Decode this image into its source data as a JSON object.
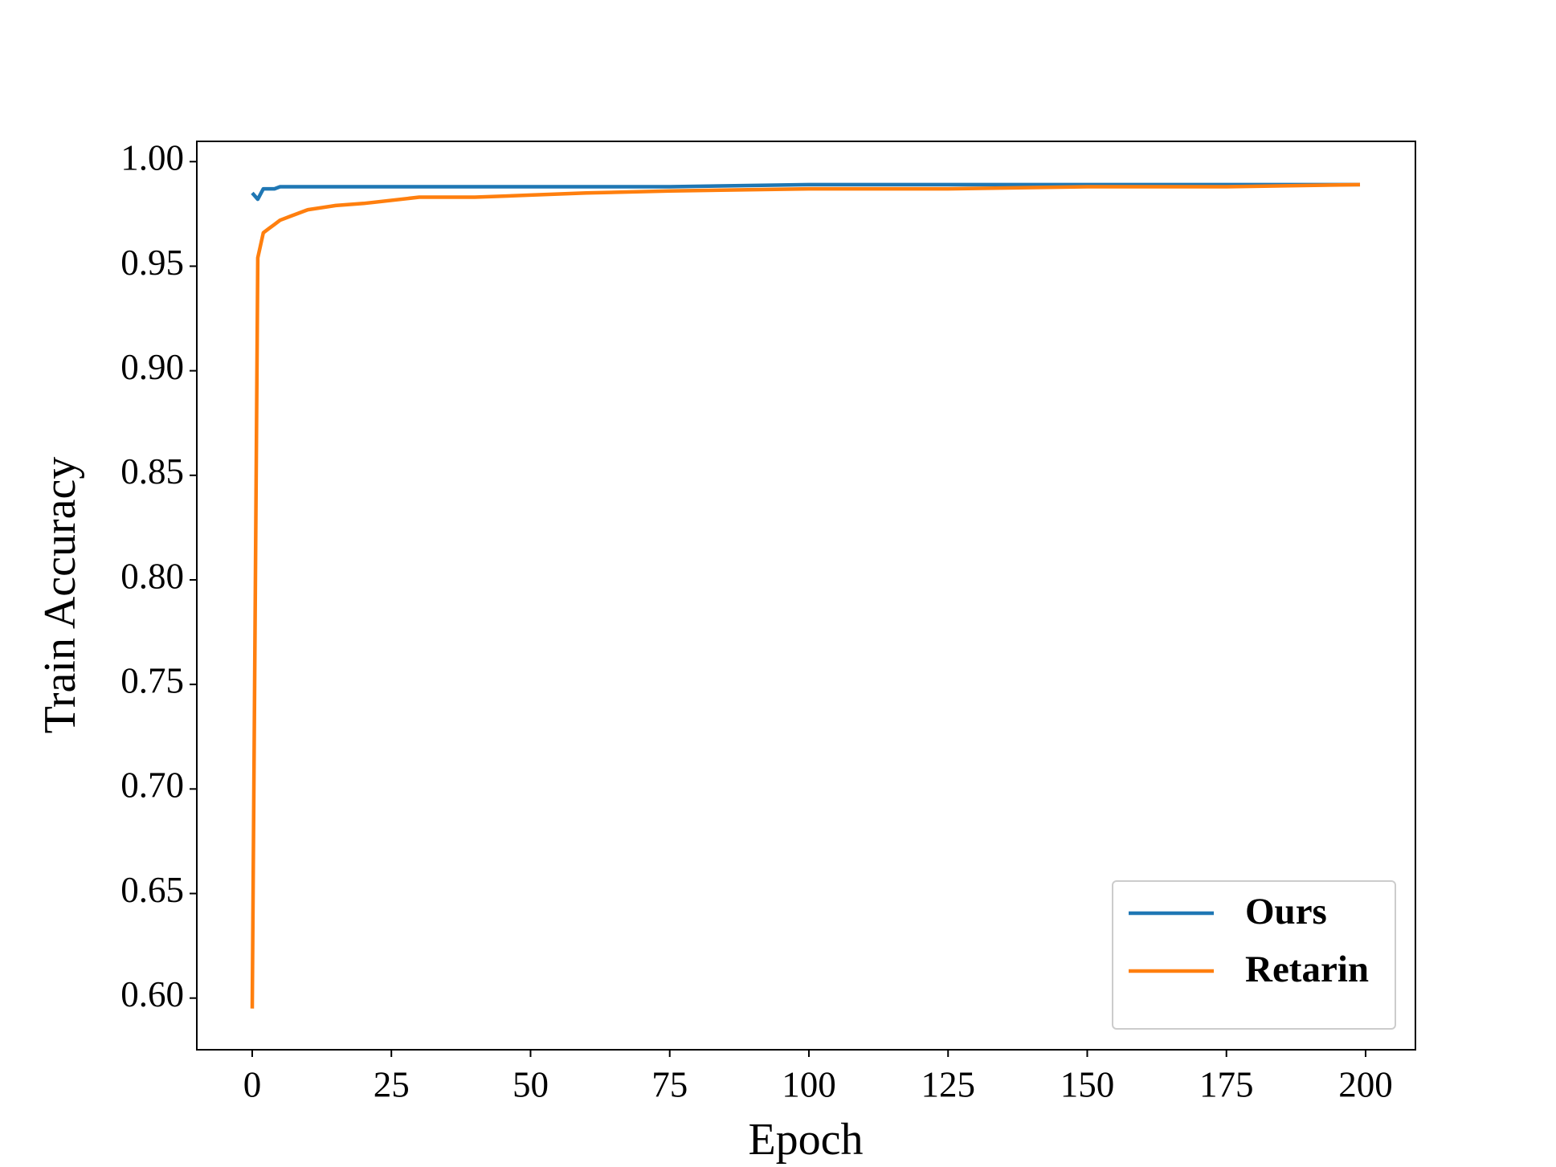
{
  "chart_data": {
    "type": "line",
    "x_label": "Epoch",
    "y_label": "Train Accuracy",
    "x": [
      0,
      1,
      2,
      3,
      4,
      5,
      7,
      10,
      15,
      20,
      30,
      40,
      50,
      60,
      75,
      100,
      125,
      150,
      175,
      199
    ],
    "series": [
      {
        "name": "Ours",
        "color": "#1f77b4",
        "values": [
          0.985,
          0.982,
          0.987,
          0.987,
          0.987,
          0.988,
          0.988,
          0.988,
          0.988,
          0.988,
          0.988,
          0.988,
          0.988,
          0.988,
          0.988,
          0.989,
          0.989,
          0.989,
          0.989,
          0.989
        ]
      },
      {
        "name": "Retarin",
        "color": "#ff7f0e",
        "values": [
          0.595,
          0.954,
          0.966,
          0.968,
          0.97,
          0.972,
          0.974,
          0.977,
          0.979,
          0.98,
          0.983,
          0.983,
          0.984,
          0.985,
          0.986,
          0.987,
          0.987,
          0.988,
          0.988,
          0.989
        ]
      }
    ],
    "xlim": [
      -9.95,
      208.95
    ],
    "xticks": [
      0,
      25,
      50,
      75,
      100,
      125,
      150,
      175,
      200
    ],
    "ylim": [
      0.5753,
      1.0097
    ],
    "yticks": [
      {
        "value": 0.6,
        "label": "0.60"
      },
      {
        "value": 0.65,
        "label": "0.65"
      },
      {
        "value": 0.7,
        "label": "0.70"
      },
      {
        "value": 0.75,
        "label": "0.75"
      },
      {
        "value": 0.8,
        "label": "0.80"
      },
      {
        "value": 0.85,
        "label": "0.85"
      },
      {
        "value": 0.9,
        "label": "0.90"
      },
      {
        "value": 0.95,
        "label": "0.95"
      },
      {
        "value": 1.0,
        "label": "1.00"
      }
    ],
    "grid": false,
    "legend": "lower right"
  }
}
